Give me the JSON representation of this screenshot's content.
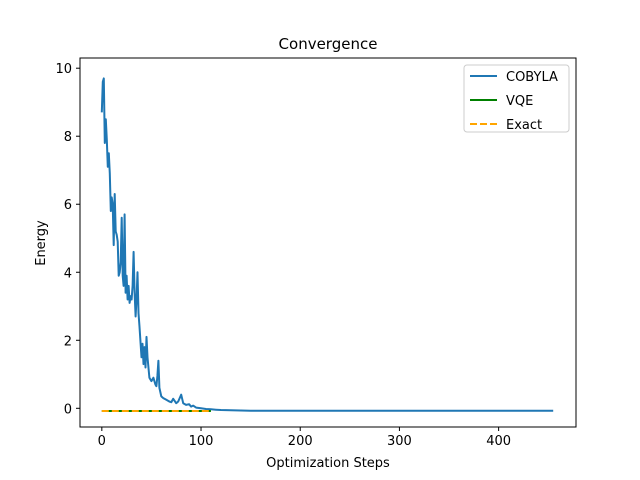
{
  "chart_data": {
    "type": "line",
    "title": "Convergence",
    "xlabel": "Optimization Steps",
    "ylabel": "Energy",
    "xlim": [
      -22,
      478
    ],
    "ylim": [
      -0.55,
      10.3
    ],
    "xticks": [
      0,
      100,
      200,
      300,
      400
    ],
    "yticks": [
      0,
      2,
      4,
      6,
      8,
      10
    ],
    "grid": false,
    "legend_position": "top-right",
    "series": [
      {
        "name": "COBYLA",
        "color": "#1f77b4",
        "style": "solid",
        "x": [
          0,
          1,
          2,
          3,
          4,
          5,
          6,
          7,
          8,
          9,
          10,
          11,
          12,
          13,
          14,
          15,
          16,
          17,
          18,
          19,
          20,
          21,
          22,
          23,
          24,
          25,
          26,
          27,
          28,
          29,
          30,
          31,
          32,
          33,
          34,
          35,
          36,
          37,
          38,
          40,
          41,
          42,
          43,
          44,
          45,
          46,
          48,
          50,
          52,
          54,
          55,
          56,
          57,
          58,
          60,
          62,
          65,
          68,
          70,
          72,
          75,
          77,
          80,
          82,
          85,
          88,
          90,
          92,
          95,
          100,
          105,
          110,
          115,
          120,
          130,
          150,
          200,
          250,
          300,
          350,
          400,
          455
        ],
        "y": [
          8.7,
          9.6,
          9.7,
          7.8,
          8.5,
          7.9,
          7.1,
          7.5,
          6.9,
          5.8,
          6.2,
          6.0,
          4.8,
          6.3,
          5.2,
          5.1,
          4.9,
          3.9,
          4.0,
          4.3,
          5.6,
          3.9,
          3.6,
          5.7,
          3.4,
          3.9,
          3.2,
          3.6,
          3.1,
          3.3,
          3.2,
          3.6,
          4.6,
          3.4,
          2.7,
          3.2,
          4.0,
          2.8,
          2.4,
          1.5,
          1.9,
          1.3,
          1.8,
          1.2,
          2.1,
          1.5,
          0.9,
          0.8,
          0.9,
          0.7,
          0.65,
          0.95,
          1.4,
          0.6,
          0.35,
          0.3,
          0.25,
          0.2,
          0.18,
          0.28,
          0.15,
          0.2,
          0.4,
          0.15,
          0.1,
          0.12,
          0.05,
          0.08,
          0.02,
          0.0,
          -0.02,
          -0.03,
          -0.04,
          -0.05,
          -0.06,
          -0.07,
          -0.07,
          -0.07,
          -0.07,
          -0.07,
          -0.07,
          -0.07
        ]
      },
      {
        "name": "VQE",
        "color": "#008000",
        "style": "solid",
        "x": [
          0,
          25,
          50,
          75,
          100,
          110
        ],
        "y": [
          -0.08,
          -0.08,
          -0.08,
          -0.08,
          -0.08,
          -0.08
        ]
      },
      {
        "name": "Exact",
        "color": "#ffa500",
        "style": "dashed",
        "x": [
          0,
          110
        ],
        "y": [
          -0.08,
          -0.08
        ]
      }
    ]
  }
}
